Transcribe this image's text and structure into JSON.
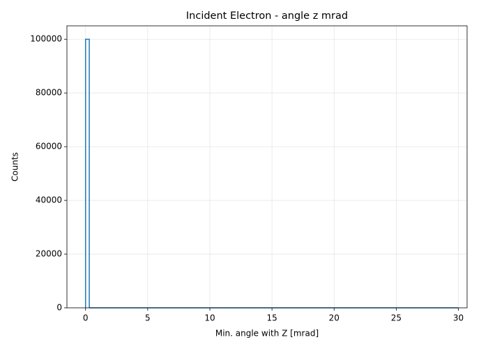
{
  "chart_data": {
    "type": "histogram",
    "title": "Incident Electron - angle z mrad",
    "x_label": "Min. angle with Z [mrad]",
    "y_label": "Counts",
    "color": "#1f77b4",
    "grid": true,
    "bins": [
      0,
      0.3,
      0.6,
      0.9,
      1.2,
      1.5,
      1.8,
      2.1,
      2.4,
      2.7,
      3,
      3.3,
      3.6,
      3.9,
      4.2,
      4.5,
      4.8,
      5.1,
      5.4,
      5.7,
      6,
      6.3,
      6.6,
      6.9,
      7.2,
      7.5,
      7.8,
      8.1,
      8.4,
      8.7,
      9,
      9.3,
      9.6,
      9.9,
      10.2,
      10.5,
      10.8,
      11.1,
      11.4,
      11.7,
      12,
      12.3,
      12.6,
      12.9,
      13.2,
      13.5,
      13.8,
      14.1,
      14.4,
      14.7,
      15,
      15.3,
      15.6,
      15.9,
      16.2,
      16.5,
      16.8,
      17.1,
      17.4,
      17.7,
      18,
      18.3,
      18.6,
      18.9,
      19.2,
      19.5,
      19.8,
      20.1,
      20.4,
      20.7,
      21,
      21.3,
      21.6,
      21.9,
      22.2,
      22.5,
      22.8,
      23.1,
      23.4,
      23.7,
      24,
      24.3,
      24.6,
      24.9,
      25.2,
      25.5,
      25.8,
      26.1,
      26.4,
      26.7,
      27,
      27.3,
      27.6,
      27.9,
      28.2,
      28.5,
      28.8,
      29.1,
      29.4,
      29.7,
      30
    ],
    "values": [
      100000,
      0,
      0,
      0,
      0,
      0,
      0,
      0,
      0,
      0,
      0,
      0,
      0,
      0,
      0,
      0,
      0,
      0,
      0,
      0,
      0,
      0,
      0,
      0,
      0,
      0,
      0,
      0,
      0,
      0,
      0,
      0,
      0,
      0,
      0,
      0,
      0,
      0,
      0,
      0,
      0,
      0,
      0,
      0,
      0,
      0,
      0,
      0,
      0,
      0,
      0,
      0,
      0,
      0,
      0,
      0,
      0,
      0,
      0,
      0,
      0,
      0,
      0,
      0,
      0,
      0,
      0,
      0,
      0,
      0,
      0,
      0,
      0,
      0,
      0,
      0,
      0,
      0,
      0,
      0,
      0,
      0,
      0,
      0,
      0,
      0,
      0,
      0,
      0,
      0,
      0,
      0,
      0,
      0,
      0,
      0,
      0,
      0,
      0,
      0
    ],
    "xlim": [
      -1.5,
      30.7
    ],
    "xticks": [
      0,
      5,
      10,
      15,
      20,
      25,
      30
    ],
    "ylim": [
      0,
      105000
    ],
    "yticks": [
      0,
      20000,
      40000,
      60000,
      80000,
      100000
    ]
  }
}
